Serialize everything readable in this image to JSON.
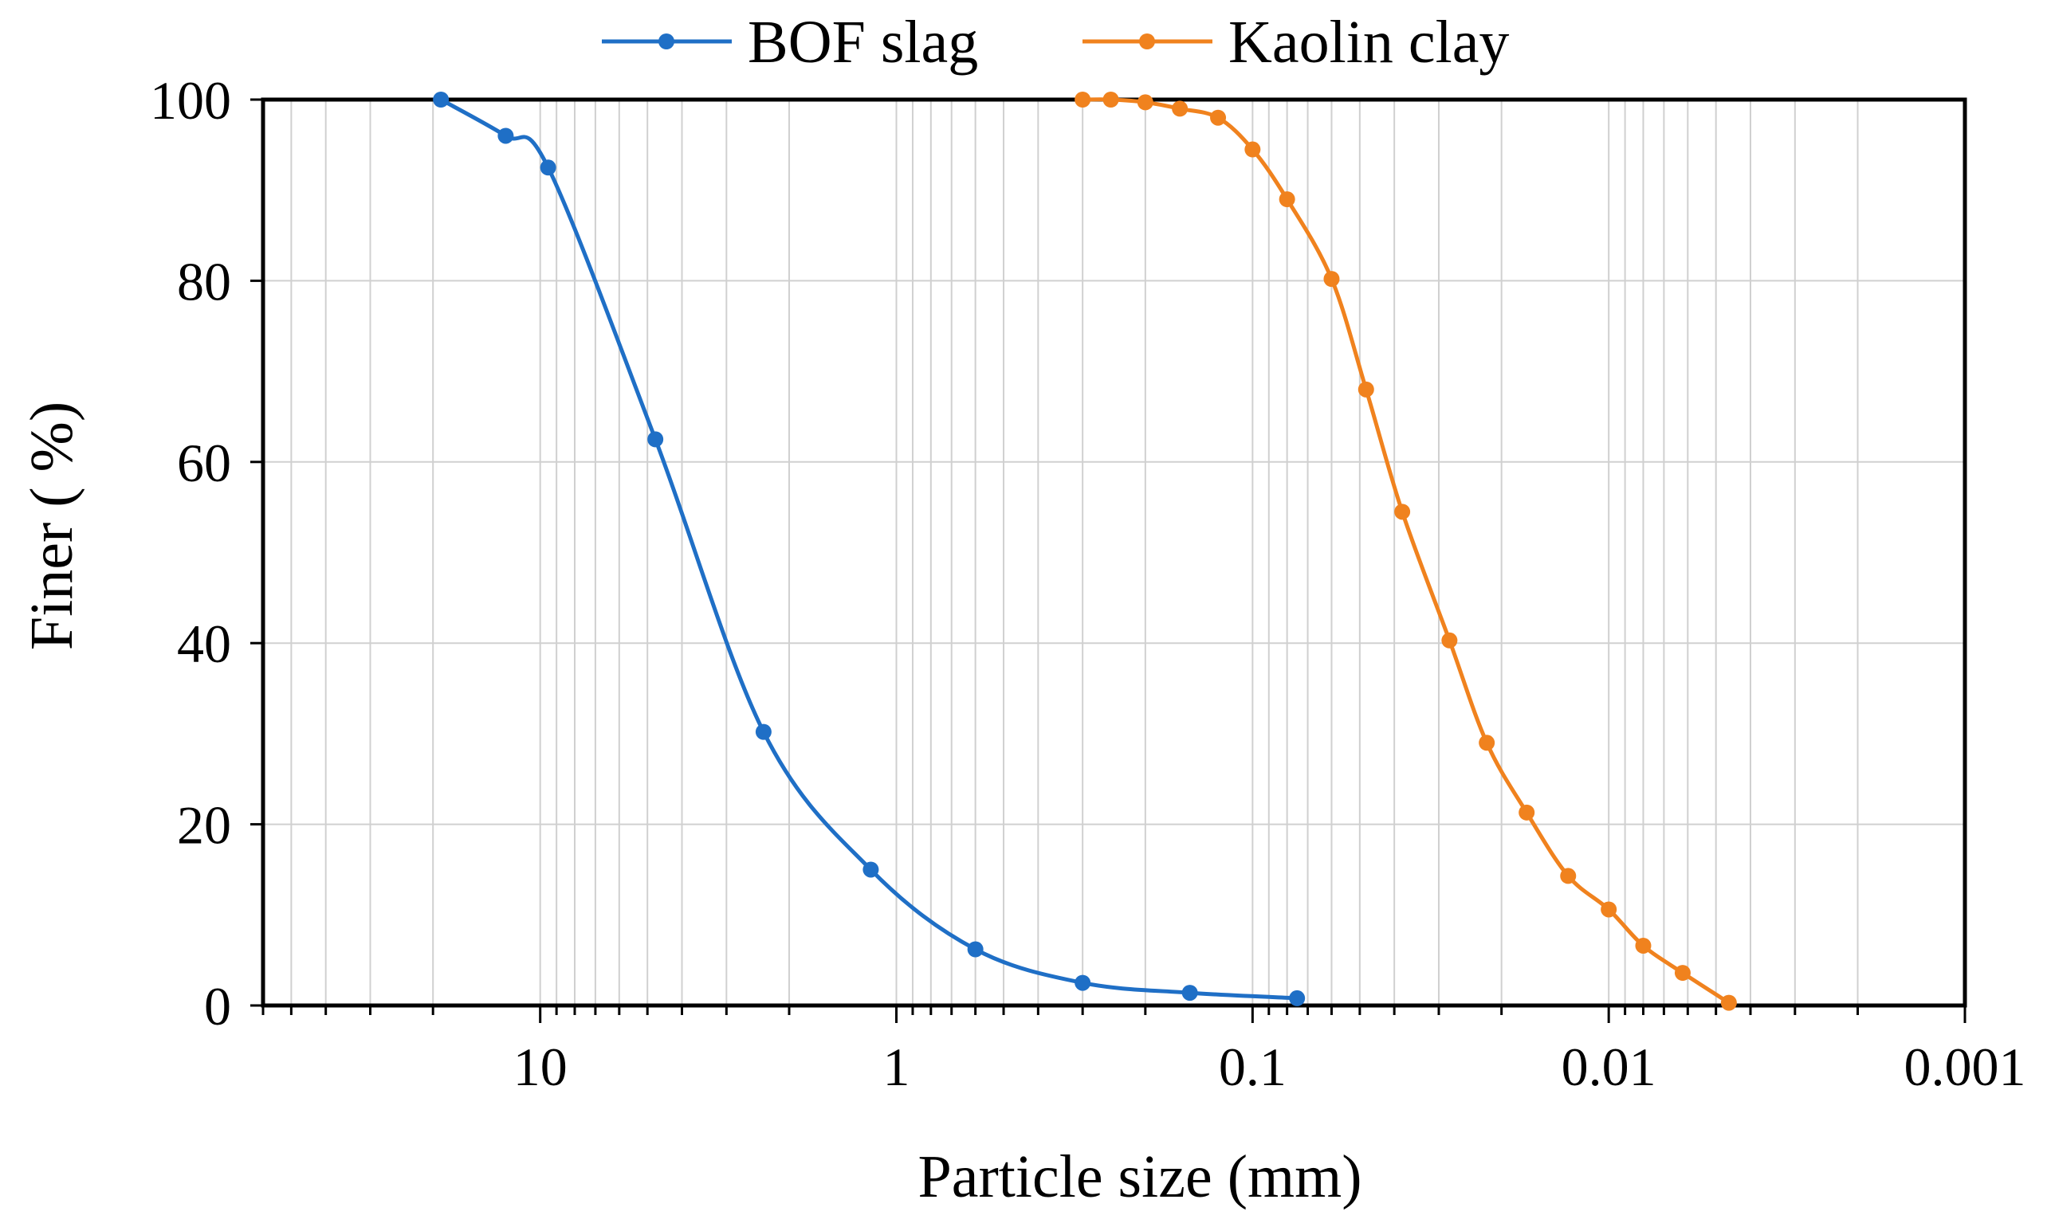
{
  "chart_data": {
    "type": "line",
    "title": "",
    "xlabel": "Particle size (mm)",
    "ylabel": "Finer ( %)",
    "x_scale": "log",
    "x_reversed": true,
    "xlim": [
      60,
      0.001
    ],
    "ylim": [
      0,
      100
    ],
    "grid": true,
    "legend_position": "top-center",
    "x_ticks": [
      {
        "value": 10,
        "label": "10"
      },
      {
        "value": 1,
        "label": "1"
      },
      {
        "value": 0.1,
        "label": "0.1"
      },
      {
        "value": 0.01,
        "label": "0.01"
      },
      {
        "value": 0.001,
        "label": "0.001"
      }
    ],
    "y_ticks": [
      {
        "value": 0,
        "label": "0"
      },
      {
        "value": 20,
        "label": "20"
      },
      {
        "value": 40,
        "label": "40"
      },
      {
        "value": 60,
        "label": "60"
      },
      {
        "value": 80,
        "label": "80"
      },
      {
        "value": 100,
        "label": "100"
      }
    ],
    "series": [
      {
        "name": "BOF slag",
        "color": "#1f6fc6",
        "x": [
          19,
          12.5,
          9.5,
          4.75,
          2.36,
          1.18,
          0.6,
          0.3,
          0.15,
          0.075
        ],
        "y": [
          100,
          96,
          92.5,
          62.5,
          30.2,
          15,
          6.2,
          2.5,
          1.4,
          0.8
        ]
      },
      {
        "name": "Kaolin clay",
        "color": "#f0821e",
        "x": [
          0.3,
          0.25,
          0.2,
          0.16,
          0.125,
          0.1,
          0.08,
          0.06,
          0.048,
          0.038,
          0.028,
          0.022,
          0.017,
          0.013,
          0.01,
          0.008,
          0.0062,
          0.0046
        ],
        "y": [
          100,
          100,
          99.7,
          99,
          98,
          94.5,
          89,
          80.2,
          68,
          54.5,
          40.3,
          29,
          21.3,
          14.3,
          10.6,
          6.6,
          3.6,
          0.3
        ]
      }
    ]
  }
}
